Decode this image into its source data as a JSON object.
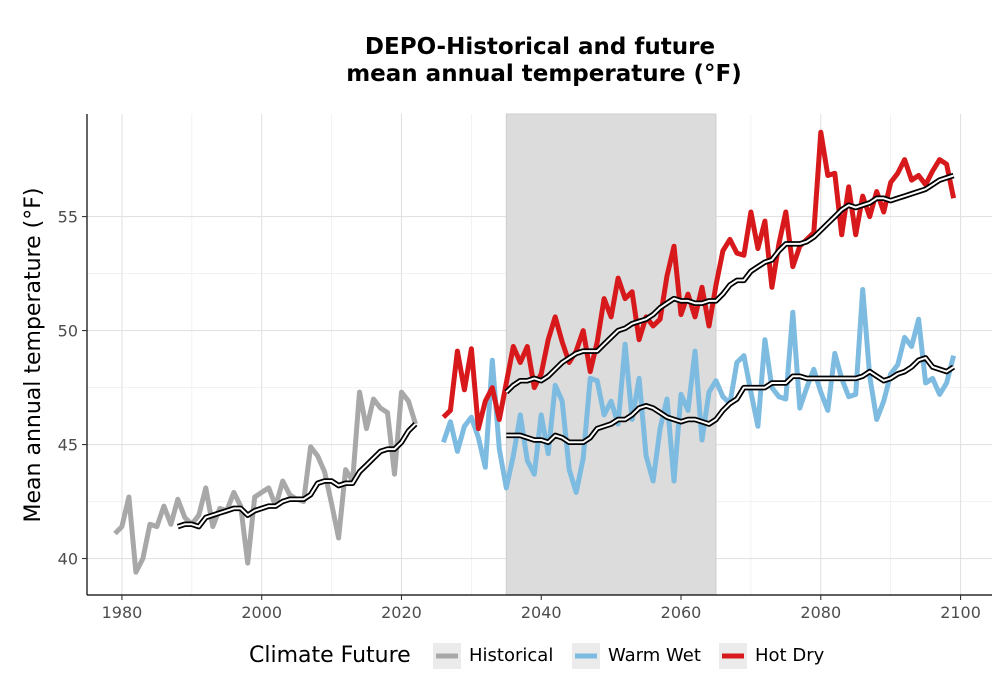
{
  "chart_data": {
    "type": "line",
    "title_line1": "DEPO-Historical and future",
    "title_line2": "mean annual temperature (°F)",
    "xlabel": "",
    "ylabel": "Mean annual temperature (°F)",
    "xlim": [
      1975,
      2104.5
    ],
    "ylim": [
      38.4,
      59.5
    ],
    "xticks": [
      1980,
      2000,
      2020,
      2040,
      2060,
      2080,
      2100
    ],
    "yticks": [
      40,
      45,
      50,
      55
    ],
    "grid": true,
    "shaded_period": [
      2035,
      2065
    ],
    "shaded_color": "#dcdcdc",
    "legend": {
      "title": "Climate Future",
      "position": "bottom",
      "entries": [
        "Historical",
        "Warm Wet",
        "Hot Dry"
      ]
    },
    "series": [
      {
        "name": "Historical",
        "color": "#a8a8a8",
        "x": [
          1979,
          1980,
          1981,
          1982,
          1983,
          1984,
          1985,
          1986,
          1987,
          1988,
          1989,
          1990,
          1991,
          1992,
          1993,
          1994,
          1995,
          1996,
          1997,
          1998,
          1999,
          2000,
          2001,
          2002,
          2003,
          2004,
          2005,
          2006,
          2007,
          2008,
          2009,
          2010,
          2011,
          2012,
          2013,
          2014,
          2015,
          2016,
          2017,
          2018,
          2019,
          2020,
          2021,
          2022
        ],
        "values": [
          41.1,
          41.4,
          42.7,
          39.4,
          40.0,
          41.5,
          41.4,
          42.3,
          41.5,
          42.6,
          41.8,
          41.5,
          41.9,
          43.1,
          41.4,
          42.2,
          42.1,
          42.9,
          42.3,
          39.8,
          42.7,
          42.9,
          43.1,
          42.3,
          43.4,
          42.8,
          42.6,
          42.5,
          44.9,
          44.5,
          43.8,
          42.4,
          40.9,
          43.9,
          43.4,
          47.3,
          45.7,
          47.0,
          46.6,
          46.4,
          43.7,
          47.3,
          46.9,
          45.9
        ]
      },
      {
        "name": "Warm Wet",
        "color": "#7ebbe0",
        "x": [
          2026,
          2027,
          2028,
          2029,
          2030,
          2031,
          2032,
          2033,
          2034,
          2035,
          2036,
          2037,
          2038,
          2039,
          2040,
          2041,
          2042,
          2043,
          2044,
          2045,
          2046,
          2047,
          2048,
          2049,
          2050,
          2051,
          2052,
          2053,
          2054,
          2055,
          2056,
          2057,
          2058,
          2059,
          2060,
          2061,
          2062,
          2063,
          2064,
          2065,
          2066,
          2067,
          2068,
          2069,
          2070,
          2071,
          2072,
          2073,
          2074,
          2075,
          2076,
          2077,
          2078,
          2079,
          2080,
          2081,
          2082,
          2083,
          2084,
          2085,
          2086,
          2087,
          2088,
          2089,
          2090,
          2091,
          2092,
          2093,
          2094,
          2095,
          2096,
          2097,
          2098,
          2099
        ],
        "values": [
          45.1,
          46.0,
          44.7,
          45.8,
          46.2,
          45.3,
          44.0,
          48.7,
          44.8,
          43.1,
          44.5,
          46.3,
          44.3,
          43.7,
          46.3,
          44.6,
          47.6,
          46.9,
          43.9,
          42.9,
          44.4,
          47.9,
          47.8,
          46.3,
          46.9,
          45.9,
          49.4,
          46.1,
          47.9,
          44.5,
          43.4,
          45.7,
          47.0,
          43.4,
          47.2,
          46.5,
          49.1,
          45.2,
          47.3,
          47.8,
          47.1,
          46.8,
          48.6,
          48.9,
          47.3,
          45.8,
          49.6,
          47.5,
          47.1,
          47.0,
          50.8,
          46.6,
          47.5,
          48.3,
          47.3,
          46.5,
          49.0,
          47.9,
          47.1,
          47.2,
          51.8,
          48.0,
          46.1,
          46.9,
          48.1,
          48.5,
          49.7,
          49.3,
          50.5,
          47.7,
          47.9,
          47.2,
          47.7,
          48.9
        ]
      },
      {
        "name": "Hot Dry",
        "color": "#d7191c",
        "x": [
          2026,
          2027,
          2028,
          2029,
          2030,
          2031,
          2032,
          2033,
          2034,
          2035,
          2036,
          2037,
          2038,
          2039,
          2040,
          2041,
          2042,
          2043,
          2044,
          2045,
          2046,
          2047,
          2048,
          2049,
          2050,
          2051,
          2052,
          2053,
          2054,
          2055,
          2056,
          2057,
          2058,
          2059,
          2060,
          2061,
          2062,
          2063,
          2064,
          2065,
          2066,
          2067,
          2068,
          2069,
          2070,
          2071,
          2072,
          2073,
          2074,
          2075,
          2076,
          2077,
          2078,
          2079,
          2080,
          2081,
          2082,
          2083,
          2084,
          2085,
          2086,
          2087,
          2088,
          2089,
          2090,
          2091,
          2092,
          2093,
          2094,
          2095,
          2096,
          2097,
          2098,
          2099
        ],
        "values": [
          46.2,
          46.5,
          49.1,
          47.4,
          49.2,
          45.7,
          46.9,
          47.5,
          46.1,
          47.7,
          49.3,
          48.6,
          49.3,
          47.5,
          48.1,
          49.6,
          50.6,
          49.5,
          48.6,
          49.1,
          50.0,
          48.2,
          49.5,
          51.4,
          50.6,
          52.3,
          51.4,
          51.7,
          49.6,
          50.6,
          50.2,
          50.5,
          52.4,
          53.7,
          50.7,
          51.6,
          50.6,
          51.9,
          50.2,
          52.0,
          53.5,
          54.0,
          53.4,
          53.3,
          55.2,
          53.6,
          54.8,
          51.9,
          53.8,
          55.2,
          52.8,
          53.7,
          54.0,
          54.3,
          58.7,
          56.8,
          56.9,
          54.2,
          56.3,
          54.2,
          55.9,
          55.0,
          56.1,
          55.2,
          56.5,
          56.9,
          57.5,
          56.6,
          56.8,
          56.4,
          57.0,
          57.5,
          57.3,
          55.8
        ]
      },
      {
        "name": "",
        "color": "#000000",
        "x": [
          1988,
          1989,
          1990,
          1991,
          1992,
          1993,
          1994,
          1995,
          1996,
          1997,
          1998,
          1999,
          2000,
          2001,
          2002,
          2003,
          2004,
          2005,
          2006,
          2007,
          2008,
          2009,
          2010,
          2011,
          2012,
          2013,
          2014,
          2015,
          2016,
          2017,
          2018,
          2019,
          2020,
          2021,
          2022
        ],
        "values": [
          41.4,
          41.5,
          41.5,
          41.4,
          41.8,
          41.9,
          42.0,
          42.1,
          42.2,
          42.2,
          41.9,
          42.1,
          42.2,
          42.3,
          42.3,
          42.5,
          42.6,
          42.6,
          42.6,
          42.8,
          43.3,
          43.4,
          43.4,
          43.2,
          43.3,
          43.3,
          43.8,
          44.1,
          44.4,
          44.7,
          44.8,
          44.8,
          45.1,
          45.6,
          45.9
        ]
      },
      {
        "name": "",
        "color": "#000000",
        "x": [
          2035,
          2036,
          2037,
          2038,
          2039,
          2040,
          2041,
          2042,
          2043,
          2044,
          2045,
          2046,
          2047,
          2048,
          2049,
          2050,
          2051,
          2052,
          2053,
          2054,
          2055,
          2056,
          2057,
          2058,
          2059,
          2060,
          2061,
          2062,
          2063,
          2064,
          2065,
          2066,
          2067,
          2068,
          2069,
          2070,
          2071,
          2072,
          2073,
          2074,
          2075,
          2076,
          2077,
          2078,
          2079,
          2080,
          2081,
          2082,
          2083,
          2084,
          2085,
          2086,
          2087,
          2088,
          2089,
          2090,
          2091,
          2092,
          2093,
          2094,
          2095,
          2096,
          2097,
          2098,
          2099
        ],
        "values": [
          45.4,
          45.4,
          45.4,
          45.3,
          45.2,
          45.2,
          45.1,
          45.4,
          45.3,
          45.1,
          45.1,
          45.1,
          45.3,
          45.7,
          45.8,
          45.9,
          46.1,
          46.1,
          46.3,
          46.6,
          46.7,
          46.6,
          46.4,
          46.2,
          46.1,
          46.0,
          46.1,
          46.1,
          46.0,
          45.9,
          46.1,
          46.5,
          46.8,
          47.0,
          47.5,
          47.5,
          47.5,
          47.5,
          47.7,
          47.7,
          47.7,
          48.0,
          48.0,
          47.9,
          47.9,
          47.9,
          47.9,
          47.9,
          47.9,
          47.9,
          47.9,
          48.0,
          48.2,
          48.0,
          47.8,
          47.9,
          48.1,
          48.2,
          48.4,
          48.7,
          48.8,
          48.4,
          48.3,
          48.2,
          48.4
        ]
      },
      {
        "name": "",
        "color": "#000000",
        "x": [
          2035,
          2036,
          2037,
          2038,
          2039,
          2040,
          2041,
          2042,
          2043,
          2044,
          2045,
          2046,
          2047,
          2048,
          2049,
          2050,
          2051,
          2052,
          2053,
          2054,
          2055,
          2056,
          2057,
          2058,
          2059,
          2060,
          2061,
          2062,
          2063,
          2064,
          2065,
          2066,
          2067,
          2068,
          2069,
          2070,
          2071,
          2072,
          2073,
          2074,
          2075,
          2076,
          2077,
          2078,
          2079,
          2080,
          2081,
          2082,
          2083,
          2084,
          2085,
          2086,
          2087,
          2088,
          2089,
          2090,
          2091,
          2092,
          2093,
          2094,
          2095,
          2096,
          2097,
          2098,
          2099
        ],
        "values": [
          47.3,
          47.6,
          47.8,
          47.8,
          47.9,
          47.8,
          48.0,
          48.3,
          48.6,
          48.8,
          49.0,
          49.1,
          49.1,
          49.1,
          49.4,
          49.7,
          50.0,
          50.1,
          50.3,
          50.4,
          50.5,
          50.7,
          51.0,
          51.2,
          51.4,
          51.3,
          51.3,
          51.2,
          51.2,
          51.3,
          51.3,
          51.6,
          52.0,
          52.2,
          52.2,
          52.6,
          52.8,
          53.0,
          53.1,
          53.5,
          53.8,
          53.8,
          53.8,
          53.9,
          54.1,
          54.4,
          54.7,
          55.0,
          55.3,
          55.5,
          55.4,
          55.5,
          55.6,
          55.8,
          55.8,
          55.7,
          55.8,
          55.9,
          56.0,
          56.1,
          56.2,
          56.4,
          56.6,
          56.7,
          56.8
        ]
      }
    ]
  }
}
